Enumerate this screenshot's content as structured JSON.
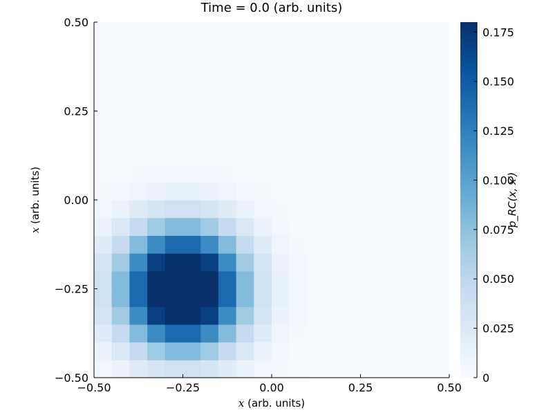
{
  "chart_data": {
    "type": "heatmap",
    "title": "Time = 0.0 (arb. units)",
    "xlabel": {
      "var": "x",
      "rest": " (arb. units)"
    },
    "ylabel": {
      "var": "x",
      "rest": " (arb. units)"
    },
    "colorbar_label": "ρ_RC(x, x′)",
    "xlim": [
      -0.5,
      0.5
    ],
    "ylim": [
      -0.5,
      0.5
    ],
    "zlim": [
      0,
      0.18
    ],
    "xticks": [
      -0.5,
      -0.25,
      0.0,
      0.25,
      0.5
    ],
    "xtick_labels": [
      "−0.50",
      "−0.25",
      "0.00",
      "0.25",
      "0.50"
    ],
    "yticks": [
      -0.5,
      -0.25,
      0.0,
      0.25,
      0.5
    ],
    "ytick_labels": [
      "−0.50",
      "−0.25",
      "0.00",
      "0.25",
      "0.50"
    ],
    "cticks": [
      0,
      0.025,
      0.05,
      0.075,
      0.1,
      0.125,
      0.15,
      0.175
    ],
    "ctick_labels": [
      "0",
      "0.025",
      "0.050",
      "0.075",
      "0.100",
      "0.125",
      "0.150",
      "0.175"
    ],
    "colormap": "Blues",
    "grid": false,
    "grid_n": 20,
    "center": [
      -0.25,
      -0.25
    ],
    "peak": 0.18
  }
}
